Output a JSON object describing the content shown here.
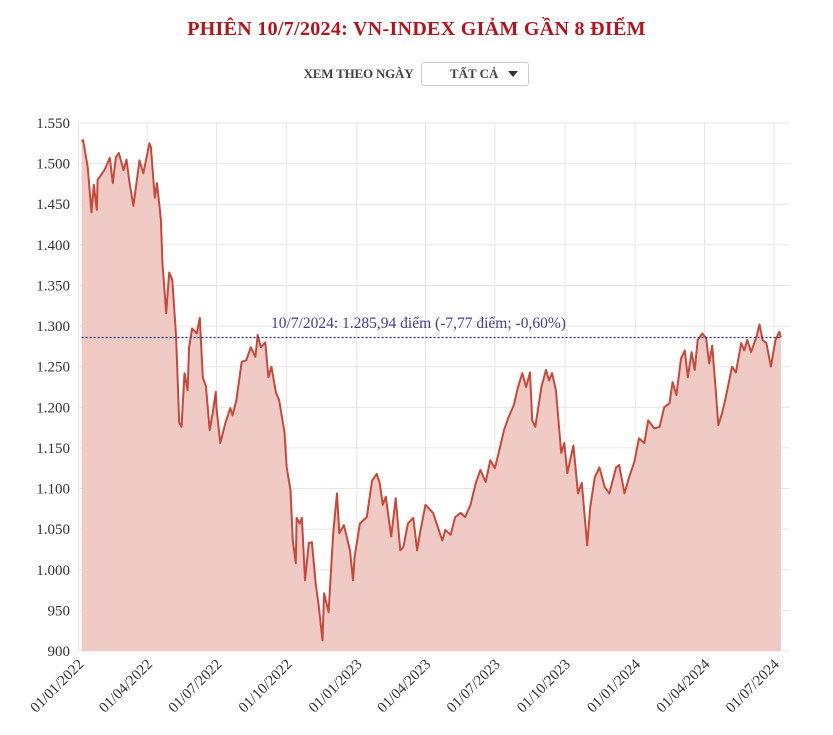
{
  "title": "PHIÊN 10/7/2024: VN-INDEX GIẢM GẦN 8 ĐIỂM",
  "filter": {
    "label": "XEM THEO NGÀY",
    "selected": "TẤT CẢ"
  },
  "chart_data": {
    "type": "area",
    "title": "PHIÊN 10/7/2024: VN-INDEX GIẢM GẦN 8 ĐIỂM",
    "xlabel": "",
    "ylabel": "",
    "ylim": [
      900,
      1550
    ],
    "xlim": [
      "2022-01-01",
      "2024-07-10"
    ],
    "grid": true,
    "colors": {
      "line": "#c8483a",
      "fill": "#f0cac4",
      "reference": "#2b2a6e",
      "annotation": "#45408a"
    },
    "yticks": [
      "900",
      "950",
      "1.000",
      "1.050",
      "1.100",
      "1.150",
      "1.200",
      "1.250",
      "1.300",
      "1.350",
      "1.400",
      "1.450",
      "1.500",
      "1.550"
    ],
    "ytick_values": [
      900,
      950,
      1000,
      1050,
      1100,
      1150,
      1200,
      1250,
      1300,
      1350,
      1400,
      1450,
      1500,
      1550
    ],
    "xticks": [
      "01/01/2022",
      "01/04/2022",
      "01/07/2022",
      "01/10/2022",
      "01/01/2023",
      "01/04/2023",
      "01/07/2023",
      "01/10/2023",
      "01/01/2024",
      "01/04/2024",
      "01/07/2024"
    ],
    "reference_line": {
      "value": 1285.94,
      "style": "dotted"
    },
    "annotation": "10/7/2024: 1.285,94 điểm (-7,77 điểm; -0,60%)",
    "points": [
      [
        "2022-01-05",
        1527
      ],
      [
        "2022-01-07",
        1529
      ],
      [
        "2022-01-13",
        1496
      ],
      [
        "2022-01-18",
        1440
      ],
      [
        "2022-01-21",
        1474
      ],
      [
        "2022-01-25",
        1443
      ],
      [
        "2022-01-26",
        1480
      ],
      [
        "2022-02-04",
        1492
      ],
      [
        "2022-02-11",
        1507
      ],
      [
        "2022-02-15",
        1476
      ],
      [
        "2022-02-19",
        1508
      ],
      [
        "2022-02-23",
        1513
      ],
      [
        "2022-03-01",
        1492
      ],
      [
        "2022-03-05",
        1505
      ],
      [
        "2022-03-09",
        1476
      ],
      [
        "2022-03-14",
        1448
      ],
      [
        "2022-03-22",
        1504
      ],
      [
        "2022-03-27",
        1488
      ],
      [
        "2022-04-04",
        1525
      ],
      [
        "2022-04-06",
        1520
      ],
      [
        "2022-04-11",
        1458
      ],
      [
        "2022-04-14",
        1476
      ],
      [
        "2022-04-19",
        1431
      ],
      [
        "2022-04-21",
        1378
      ],
      [
        "2022-04-26",
        1316
      ],
      [
        "2022-04-30",
        1366
      ],
      [
        "2022-05-04",
        1357
      ],
      [
        "2022-05-09",
        1287
      ],
      [
        "2022-05-13",
        1181
      ],
      [
        "2022-05-16",
        1176
      ],
      [
        "2022-05-20",
        1242
      ],
      [
        "2022-05-24",
        1221
      ],
      [
        "2022-05-26",
        1274
      ],
      [
        "2022-05-30",
        1297
      ],
      [
        "2022-06-05",
        1291
      ],
      [
        "2022-06-09",
        1310
      ],
      [
        "2022-06-13",
        1237
      ],
      [
        "2022-06-17",
        1226
      ],
      [
        "2022-06-22",
        1172
      ],
      [
        "2022-06-26",
        1193
      ],
      [
        "2022-06-30",
        1219
      ],
      [
        "2022-07-01",
        1199
      ],
      [
        "2022-07-06",
        1156
      ],
      [
        "2022-07-13",
        1182
      ],
      [
        "2022-07-19",
        1199
      ],
      [
        "2022-07-22",
        1190
      ],
      [
        "2022-07-27",
        1209
      ],
      [
        "2022-08-03",
        1256
      ],
      [
        "2022-08-09",
        1258
      ],
      [
        "2022-08-15",
        1274
      ],
      [
        "2022-08-21",
        1262
      ],
      [
        "2022-08-24",
        1289
      ],
      [
        "2022-08-28",
        1274
      ],
      [
        "2022-09-03",
        1280
      ],
      [
        "2022-09-07",
        1237
      ],
      [
        "2022-09-11",
        1250
      ],
      [
        "2022-09-17",
        1218
      ],
      [
        "2022-09-21",
        1209
      ],
      [
        "2022-09-28",
        1170
      ],
      [
        "2022-10-01",
        1126
      ],
      [
        "2022-10-06",
        1098
      ],
      [
        "2022-10-09",
        1036
      ],
      [
        "2022-10-13",
        1008
      ],
      [
        "2022-10-14",
        1064
      ],
      [
        "2022-10-18",
        1057
      ],
      [
        "2022-10-21",
        1064
      ],
      [
        "2022-10-25",
        987
      ],
      [
        "2022-10-30",
        1033
      ],
      [
        "2022-11-03",
        1034
      ],
      [
        "2022-11-08",
        983
      ],
      [
        "2022-11-12",
        956
      ],
      [
        "2022-11-17",
        913
      ],
      [
        "2022-11-19",
        971
      ],
      [
        "2022-11-25",
        948
      ],
      [
        "2022-12-01",
        1045
      ],
      [
        "2022-12-06",
        1094
      ],
      [
        "2022-12-09",
        1045
      ],
      [
        "2022-12-15",
        1055
      ],
      [
        "2022-12-23",
        1024
      ],
      [
        "2022-12-27",
        987
      ],
      [
        "2022-12-29",
        1016
      ],
      [
        "2023-01-05",
        1057
      ],
      [
        "2023-01-14",
        1065
      ],
      [
        "2023-01-21",
        1110
      ],
      [
        "2023-01-27",
        1118
      ],
      [
        "2023-01-31",
        1107
      ],
      [
        "2023-02-04",
        1080
      ],
      [
        "2023-02-08",
        1090
      ],
      [
        "2023-02-15",
        1041
      ],
      [
        "2023-02-21",
        1088
      ],
      [
        "2023-02-27",
        1024
      ],
      [
        "2023-03-03",
        1028
      ],
      [
        "2023-03-09",
        1057
      ],
      [
        "2023-03-16",
        1064
      ],
      [
        "2023-03-21",
        1024
      ],
      [
        "2023-03-25",
        1046
      ],
      [
        "2023-04-01",
        1080
      ],
      [
        "2023-04-11",
        1070
      ],
      [
        "2023-04-17",
        1053
      ],
      [
        "2023-04-23",
        1036
      ],
      [
        "2023-04-27",
        1049
      ],
      [
        "2023-05-04",
        1043
      ],
      [
        "2023-05-10",
        1065
      ],
      [
        "2023-05-17",
        1070
      ],
      [
        "2023-05-23",
        1065
      ],
      [
        "2023-05-30",
        1080
      ],
      [
        "2023-06-06",
        1107
      ],
      [
        "2023-06-12",
        1123
      ],
      [
        "2023-06-19",
        1108
      ],
      [
        "2023-06-25",
        1135
      ],
      [
        "2023-07-01",
        1125
      ],
      [
        "2023-07-06",
        1144
      ],
      [
        "2023-07-13",
        1172
      ],
      [
        "2023-07-19",
        1188
      ],
      [
        "2023-07-26",
        1203
      ],
      [
        "2023-07-31",
        1224
      ],
      [
        "2023-08-06",
        1242
      ],
      [
        "2023-08-11",
        1225
      ],
      [
        "2023-08-16",
        1243
      ],
      [
        "2023-08-19",
        1184
      ],
      [
        "2023-08-23",
        1176
      ],
      [
        "2023-08-31",
        1225
      ],
      [
        "2023-09-06",
        1246
      ],
      [
        "2023-09-10",
        1233
      ],
      [
        "2023-09-14",
        1242
      ],
      [
        "2023-09-19",
        1221
      ],
      [
        "2023-09-26",
        1144
      ],
      [
        "2023-09-30",
        1156
      ],
      [
        "2023-10-04",
        1119
      ],
      [
        "2023-10-12",
        1153
      ],
      [
        "2023-10-18",
        1094
      ],
      [
        "2023-10-23",
        1107
      ],
      [
        "2023-10-30",
        1030
      ],
      [
        "2023-11-03",
        1077
      ],
      [
        "2023-11-09",
        1114
      ],
      [
        "2023-11-15",
        1126
      ],
      [
        "2023-11-22",
        1102
      ],
      [
        "2023-11-28",
        1094
      ],
      [
        "2023-12-07",
        1126
      ],
      [
        "2023-12-11",
        1129
      ],
      [
        "2023-12-18",
        1094
      ],
      [
        "2023-12-24",
        1114
      ],
      [
        "2023-12-31",
        1133
      ],
      [
        "2024-01-06",
        1162
      ],
      [
        "2024-01-13",
        1156
      ],
      [
        "2024-01-18",
        1184
      ],
      [
        "2024-01-26",
        1174
      ],
      [
        "2024-02-02",
        1176
      ],
      [
        "2024-02-08",
        1200
      ],
      [
        "2024-02-15",
        1205
      ],
      [
        "2024-02-19",
        1231
      ],
      [
        "2024-02-24",
        1215
      ],
      [
        "2024-03-01",
        1260
      ],
      [
        "2024-03-06",
        1270
      ],
      [
        "2024-03-10",
        1237
      ],
      [
        "2024-03-15",
        1268
      ],
      [
        "2024-03-19",
        1246
      ],
      [
        "2024-03-23",
        1283
      ],
      [
        "2024-03-29",
        1291
      ],
      [
        "2024-04-03",
        1285
      ],
      [
        "2024-04-07",
        1254
      ],
      [
        "2024-04-11",
        1276
      ],
      [
        "2024-04-16",
        1217
      ],
      [
        "2024-04-19",
        1178
      ],
      [
        "2024-04-24",
        1193
      ],
      [
        "2024-04-29",
        1213
      ],
      [
        "2024-05-07",
        1250
      ],
      [
        "2024-05-12",
        1243
      ],
      [
        "2024-05-19",
        1279
      ],
      [
        "2024-05-23",
        1270
      ],
      [
        "2024-05-27",
        1283
      ],
      [
        "2024-06-01",
        1268
      ],
      [
        "2024-06-08",
        1287
      ],
      [
        "2024-06-12",
        1302
      ],
      [
        "2024-06-16",
        1283
      ],
      [
        "2024-06-21",
        1279
      ],
      [
        "2024-06-27",
        1250
      ],
      [
        "2024-07-03",
        1283
      ],
      [
        "2024-07-08",
        1293
      ],
      [
        "2024-07-10",
        1285.94
      ]
    ]
  }
}
